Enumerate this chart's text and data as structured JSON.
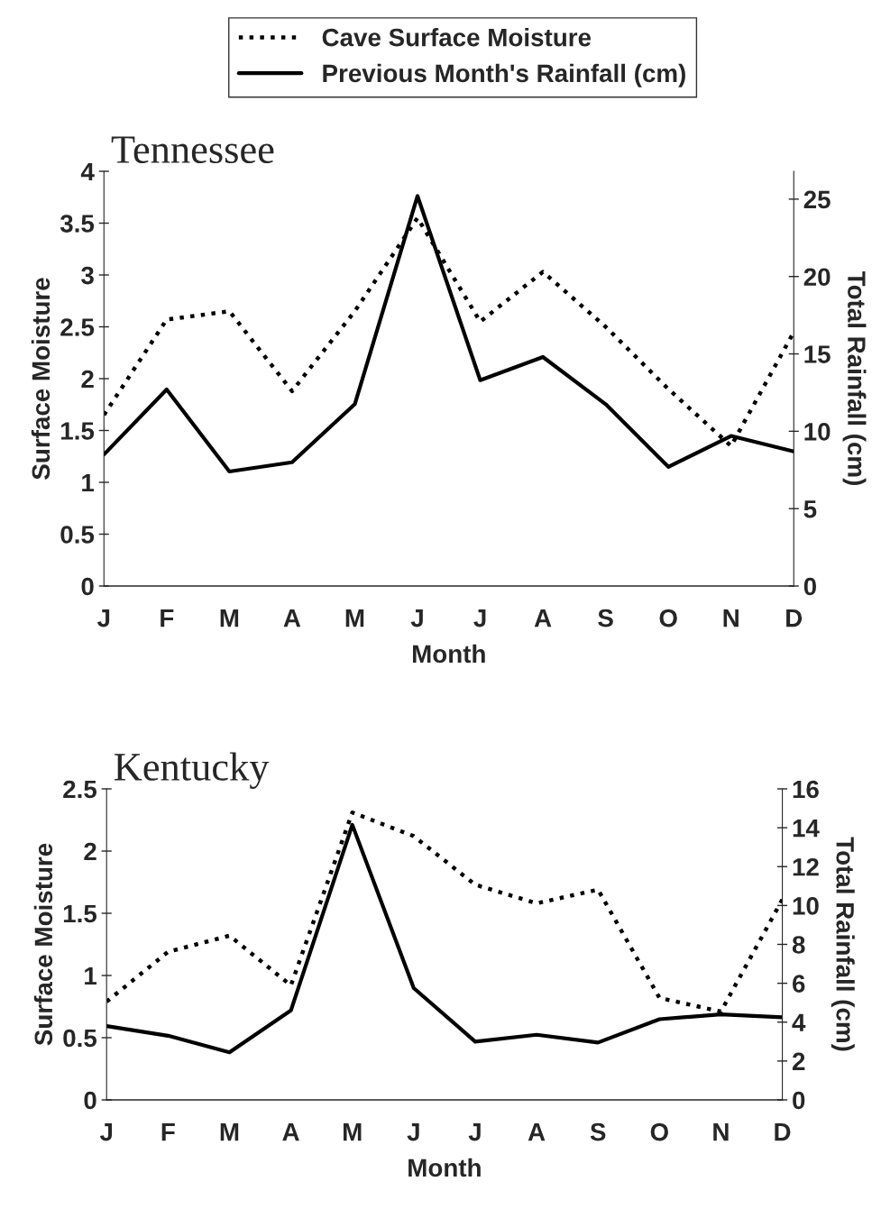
{
  "chart_data": [
    {
      "type": "line",
      "title": "Tennessee",
      "xlabel": "Month",
      "ylabel": "Surface Moisture",
      "y2label": "Total Rainfall (cm)",
      "categories": [
        "J",
        "F",
        "M",
        "A",
        "M",
        "J",
        "J",
        "A",
        "S",
        "O",
        "N",
        "D"
      ],
      "series": [
        {
          "name": "Cave Surface Moisture",
          "color": "#000000",
          "line_style": "dotted",
          "values": [
            1.65,
            2.57,
            2.65,
            1.88,
            2.65,
            3.55,
            2.55,
            3.03,
            2.5,
            1.9,
            1.35,
            2.45
          ]
        },
        {
          "name": "Previous Month's Rainfall (cm)",
          "color": "#000000",
          "line_style": "solid",
          "axis": "y2",
          "values": [
            8.5,
            12.7,
            7.4,
            8.0,
            11.75,
            25.2,
            13.3,
            14.8,
            11.75,
            7.7,
            9.7,
            8.7
          ]
        }
      ],
      "ylim": [
        0,
        4
      ],
      "yticks": [
        0,
        0.5,
        1,
        1.5,
        2,
        2.5,
        3,
        3.5,
        4
      ],
      "y2lim": [
        0,
        26.8
      ],
      "y2ticks": [
        0,
        5,
        10,
        15,
        20,
        25
      ],
      "grid": false,
      "legend": "top",
      "marker": "none"
    },
    {
      "type": "line",
      "title": "Kentucky",
      "xlabel": "Month",
      "ylabel": "Surface Moisture",
      "y2label": "Total Rainfall (cm)",
      "categories": [
        "J",
        "F",
        "M",
        "A",
        "M",
        "J",
        "J",
        "A",
        "S",
        "O",
        "N",
        "D"
      ],
      "series": [
        {
          "color": "#000000",
          "line_style": "dotted",
          "values": [
            0.79,
            1.19,
            1.32,
            0.92,
            2.31,
            2.12,
            1.73,
            1.58,
            1.69,
            0.82,
            0.71,
            1.61
          ]
        },
        {
          "color": "#000000",
          "line_style": "solid",
          "axis": "y2",
          "values": [
            3.8,
            3.3,
            2.45,
            4.6,
            14.15,
            5.75,
            3.0,
            3.35,
            2.95,
            4.15,
            4.4,
            4.25
          ]
        }
      ],
      "ylim": [
        0,
        2.5
      ],
      "yticks": [
        0,
        0.5,
        1,
        1.5,
        2,
        2.5
      ],
      "y2lim": [
        0,
        16
      ],
      "y2ticks": [
        0,
        2,
        4,
        6,
        8,
        10,
        12,
        14,
        16
      ],
      "grid": false,
      "legend": false,
      "marker": "none"
    }
  ]
}
